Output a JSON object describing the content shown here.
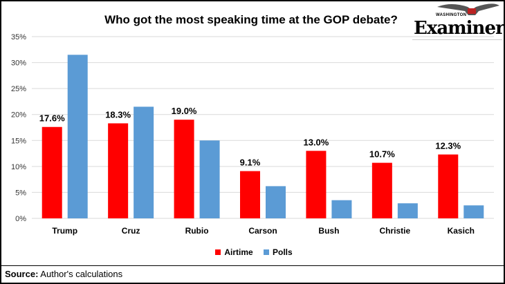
{
  "logo_text": "WASHINGTON Examiner",
  "chart_data": {
    "type": "bar",
    "title": "Who got the most speaking time at the GOP debate?",
    "categories": [
      "Trump",
      "Cruz",
      "Rubio",
      "Carson",
      "Bush",
      "Christie",
      "Kasich"
    ],
    "series": [
      {
        "name": "Airtime",
        "color": "#ff0000",
        "values": [
          17.6,
          18.3,
          19.0,
          9.1,
          13.0,
          10.7,
          12.3
        ],
        "labels": [
          "17.6%",
          "18.3%",
          "19.0%",
          "9.1%",
          "13.0%",
          "10.7%",
          "12.3%"
        ]
      },
      {
        "name": "Polls",
        "color": "#5b9bd5",
        "values": [
          31.5,
          21.5,
          15.0,
          6.2,
          3.5,
          2.9,
          2.5
        ]
      }
    ],
    "ylim": [
      0,
      35
    ],
    "yticks": [
      "0%",
      "5%",
      "10%",
      "15%",
      "20%",
      "25%",
      "30%",
      "35%"
    ],
    "grid": true,
    "legend": "bottom"
  },
  "source": {
    "label": "Source:",
    "text": " Author's calculations"
  }
}
